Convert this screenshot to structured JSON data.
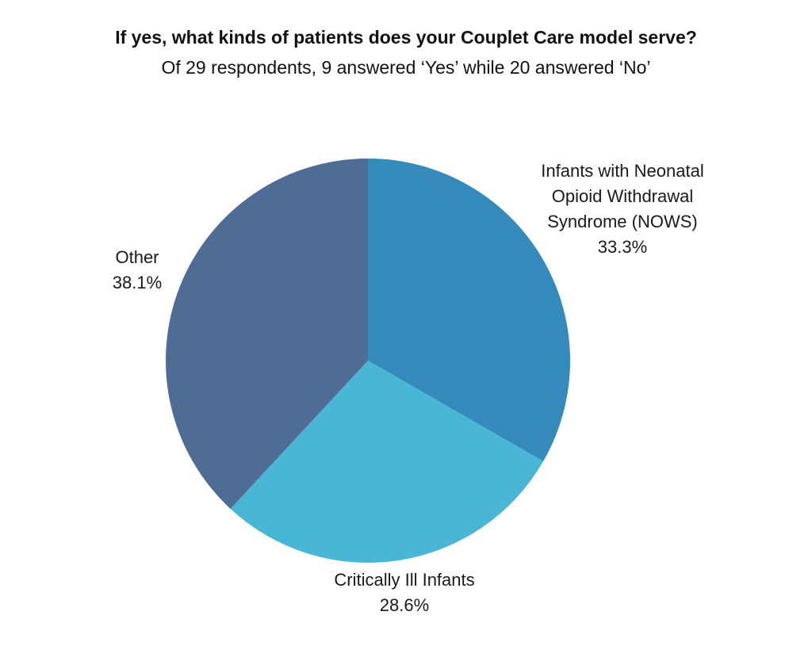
{
  "chart_data": {
    "type": "pie",
    "title": "If yes, what kinds of patients does your Couplet Care model serve?",
    "subtitle": "Of 29 respondents, 9 answered ‘Yes’ while 20 answered ‘No’",
    "slices": [
      {
        "lines": [
          "Infants with Neonatal",
          "Opioid Withdrawal",
          "Syndrome (NOWS)"
        ],
        "value": 33.3,
        "label": "33.3%",
        "color": "#348ABB"
      },
      {
        "lines": [
          "Critically Ill Infants"
        ],
        "value": 28.6,
        "label": "28.6%",
        "color": "#48B6D4"
      },
      {
        "lines": [
          "Other"
        ],
        "value": 38.1,
        "label": "38.1%",
        "color": "#4F6C95"
      }
    ],
    "start_angle": "12 o'clock",
    "direction": "clockwise",
    "legend": "none (labels beside slices)"
  }
}
